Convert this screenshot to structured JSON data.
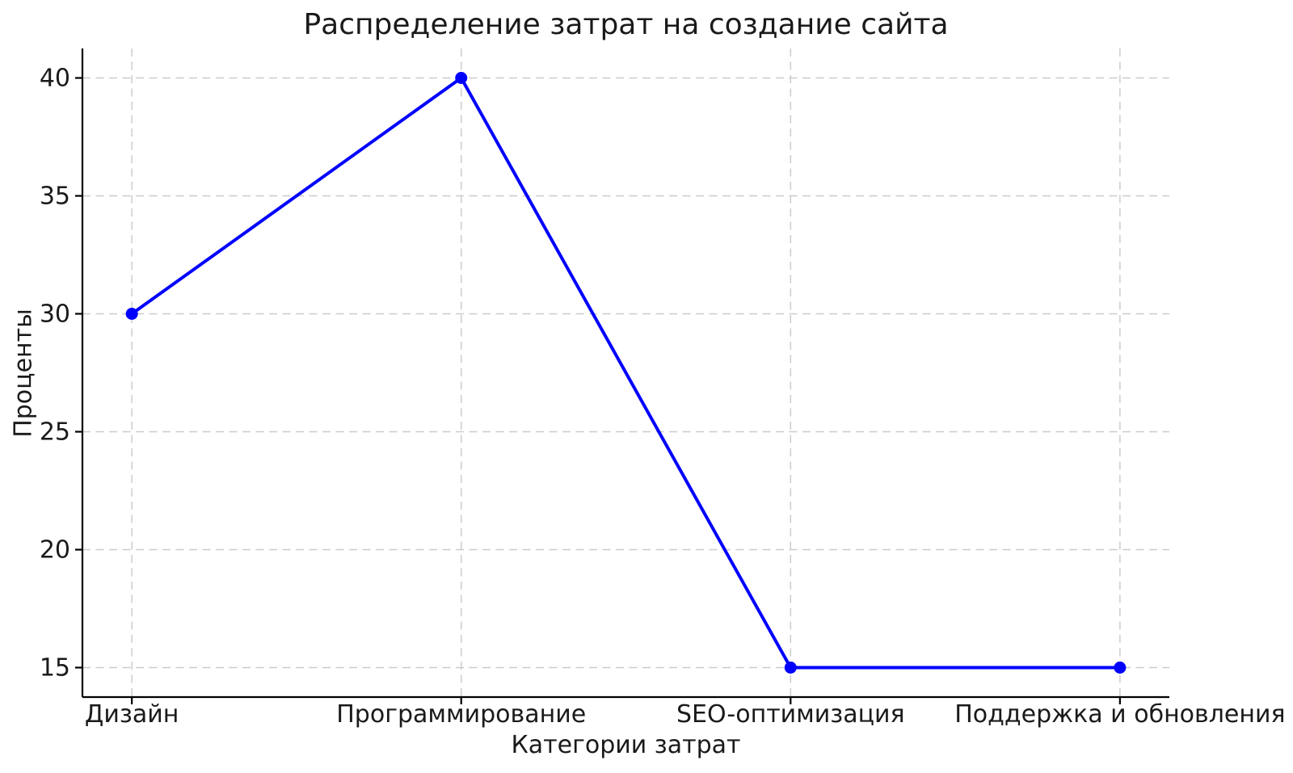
{
  "chart_data": {
    "type": "line",
    "title": "Распределение затрат на создание сайта",
    "xlabel": "Категории затрат",
    "ylabel": "Проценты",
    "categories": [
      "Дизайн",
      "Программирование",
      "SEO-оптимизация",
      "Поддержка и обновления"
    ],
    "series": [
      {
        "name": "Проценты",
        "values": [
          30,
          40,
          15,
          15
        ]
      }
    ],
    "y_ticks": [
      15,
      20,
      25,
      30,
      35,
      40
    ],
    "ylim": [
      13.75,
      41.25
    ],
    "grid": "dashed-both-axes",
    "legend_position": "none",
    "line_color": "#0000ff",
    "marker": "circle",
    "grid_color": "#cccccc",
    "axis_color": "#000000",
    "text_color": "#1a1a1a"
  }
}
